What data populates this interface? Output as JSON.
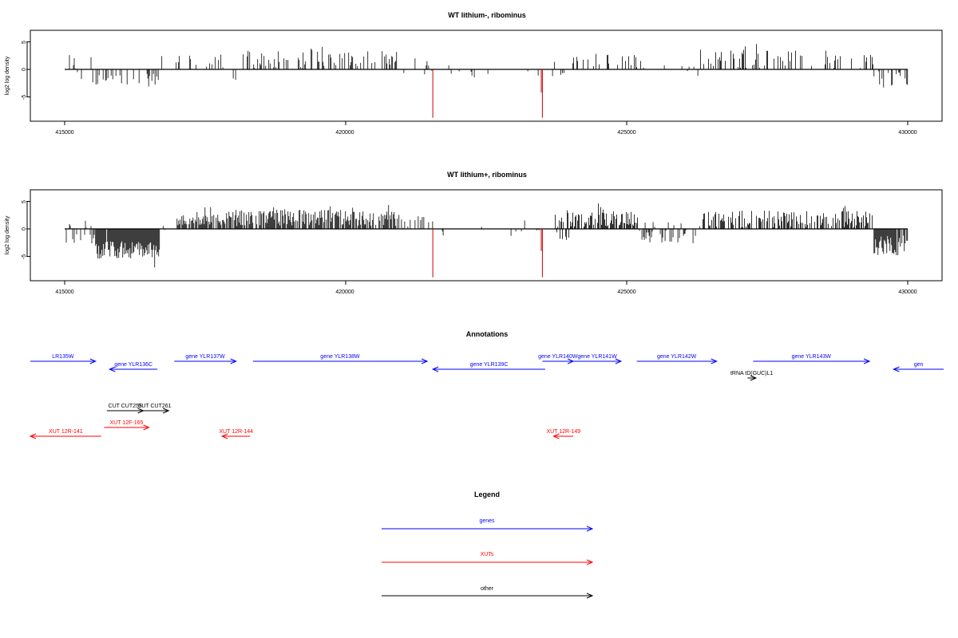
{
  "panels": [
    {
      "title": "WT lithium-, ribominus",
      "ylabel": "log2 log density",
      "yticks": [
        "5",
        "0",
        "-5"
      ],
      "xticks": [
        "415000",
        "420000",
        "425000",
        "430000"
      ]
    },
    {
      "title": "WT lithium+, ribominus",
      "ylabel": "log2 log density",
      "yticks": [
        "5",
        "0",
        "-5"
      ],
      "xticks": [
        "415000",
        "420000",
        "425000",
        "430000"
      ]
    }
  ],
  "annotations": {
    "title": "Annotations",
    "features": [
      {
        "label": "LR135W",
        "type": "gene",
        "color": "#0000ff",
        "start": 414150,
        "end": 415550,
        "strand": "+",
        "track": 0
      },
      {
        "label": "gene YLR136C",
        "type": "gene",
        "color": "#0000ff",
        "start": 415800,
        "end": 416650,
        "strand": "-",
        "track": 1
      },
      {
        "label": "gene YLR137W",
        "type": "gene",
        "color": "#0000ff",
        "start": 416950,
        "end": 418050,
        "strand": "+",
        "track": 0
      },
      {
        "label": "gene YLR138W",
        "type": "gene",
        "color": "#0000ff",
        "start": 418350,
        "end": 421450,
        "strand": "+",
        "track": 0
      },
      {
        "label": "gene YLR139C",
        "type": "gene",
        "color": "#0000ff",
        "start": 421550,
        "end": 423550,
        "strand": "-",
        "track": 1
      },
      {
        "label": "gene YLR140W",
        "type": "gene",
        "color": "#0000ff",
        "start": 423500,
        "end": 424050,
        "strand": "+",
        "track": 0
      },
      {
        "label": "gene YLR141W",
        "type": "gene",
        "color": "#0000ff",
        "start": 424050,
        "end": 424900,
        "strand": "+",
        "track": 0
      },
      {
        "label": "gene YLR142W",
        "type": "gene",
        "color": "#0000ff",
        "start": 425180,
        "end": 426600,
        "strand": "+",
        "track": 0
      },
      {
        "label": "gene YLR143W",
        "type": "gene",
        "color": "#0000ff",
        "start": 427250,
        "end": 429320,
        "strand": "+",
        "track": 0
      },
      {
        "label": "gen",
        "type": "gene",
        "color": "#0000ff",
        "start": 429750,
        "end": 431200,
        "strand": "-",
        "track": 1
      },
      {
        "label": "tRNA tD(GUC)L1",
        "type": "other",
        "color": "#000000",
        "start": 427150,
        "end": 427300,
        "strand": "+",
        "track": 2
      },
      {
        "label": "CUT CUT255",
        "type": "other",
        "color": "#000000",
        "start": 415750,
        "end": 416400,
        "strand": "+",
        "track": 3
      },
      {
        "label": "SUT CUT261",
        "type": "other",
        "color": "#000000",
        "start": 416350,
        "end": 416850,
        "strand": "+",
        "track": 3
      },
      {
        "label": "XUT 12R-141",
        "type": "XUT",
        "color": "#ff0000",
        "start": 414150,
        "end": 415650,
        "strand": "-",
        "track": 4
      },
      {
        "label": "XUT 12F-165",
        "type": "XUT",
        "color": "#ff0000",
        "start": 415700,
        "end": 416500,
        "strand": "+",
        "track": 5
      },
      {
        "label": "XUT 12R-144",
        "type": "XUT",
        "color": "#ff0000",
        "start": 417800,
        "end": 418300,
        "strand": "-",
        "track": 4
      },
      {
        "label": "XUT 12R-149",
        "type": "XUT",
        "color": "#ff0000",
        "start": 423700,
        "end": 424050,
        "strand": "-",
        "track": 4
      }
    ]
  },
  "legend": {
    "title": "Legend",
    "entries": [
      {
        "label": "genes",
        "color": "#0000ff"
      },
      {
        "label": "XUTs",
        "color": "#ff0000"
      },
      {
        "label": "other",
        "color": "#000000"
      }
    ]
  },
  "chart_data": [
    {
      "type": "bar",
      "title": "WT lithium-, ribominus",
      "ylabel": "log2 log density",
      "xlim": [
        415000,
        430000
      ],
      "ylim": [
        -9,
        7
      ],
      "grid": false,
      "red_spikes": [
        {
          "x": 421550,
          "y": -8.8
        },
        {
          "x": 423500,
          "y": -8.8
        },
        {
          "x": 423480,
          "y": -4.2
        }
      ],
      "regions": [
        {
          "start": 415000,
          "end": 415500,
          "density": 0.28,
          "mean": 0.3,
          "spread": 3.0
        },
        {
          "start": 415500,
          "end": 416700,
          "density": 0.3,
          "mean": -2.0,
          "spread": 1.5
        },
        {
          "start": 416700,
          "end": 417800,
          "density": 0.18,
          "mean": 1.5,
          "spread": 1.2
        },
        {
          "start": 417800,
          "end": 418050,
          "density": 0.2,
          "mean": -0.3,
          "spread": 2.0
        },
        {
          "start": 418050,
          "end": 420950,
          "density": 0.38,
          "mean": 1.8,
          "spread": 1.6
        },
        {
          "start": 420950,
          "end": 421550,
          "density": 0.12,
          "mean": 0.6,
          "spread": 1.5
        },
        {
          "start": 421550,
          "end": 423700,
          "density": 0.04,
          "mean": -0.5,
          "spread": 0.8
        },
        {
          "start": 423700,
          "end": 424000,
          "density": 0.3,
          "mean": -1.0,
          "spread": 2.4
        },
        {
          "start": 424000,
          "end": 425300,
          "density": 0.28,
          "mean": 1.4,
          "spread": 1.4
        },
        {
          "start": 425300,
          "end": 426300,
          "density": 0.12,
          "mean": 0.4,
          "spread": 1.6
        },
        {
          "start": 426300,
          "end": 429400,
          "density": 0.28,
          "mean": 1.8,
          "spread": 1.6
        },
        {
          "start": 429400,
          "end": 430000,
          "density": 0.3,
          "mean": -1.5,
          "spread": 1.8
        }
      ]
    },
    {
      "type": "bar",
      "title": "WT lithium+, ribominus",
      "ylabel": "log2 log density",
      "xlim": [
        415000,
        430000
      ],
      "ylim": [
        -9,
        7
      ],
      "grid": false,
      "red_spikes": [
        {
          "x": 421550,
          "y": -8.8
        },
        {
          "x": 423500,
          "y": -8.8
        },
        {
          "x": 423480,
          "y": -4.0
        }
      ],
      "regions": [
        {
          "start": 415000,
          "end": 415550,
          "density": 0.45,
          "mean": -0.8,
          "spread": 2.6
        },
        {
          "start": 415550,
          "end": 416700,
          "density": 0.95,
          "mean": -3.8,
          "spread": 1.6
        },
        {
          "start": 416700,
          "end": 417000,
          "density": 0.2,
          "mean": 0.2,
          "spread": 1.2
        },
        {
          "start": 417000,
          "end": 418050,
          "density": 0.75,
          "mean": 1.6,
          "spread": 1.0
        },
        {
          "start": 418050,
          "end": 420950,
          "density": 0.8,
          "mean": 2.0,
          "spread": 1.5
        },
        {
          "start": 420950,
          "end": 421550,
          "density": 0.25,
          "mean": 0.8,
          "spread": 1.6
        },
        {
          "start": 421550,
          "end": 423700,
          "density": 0.06,
          "mean": -0.3,
          "spread": 1.2
        },
        {
          "start": 423700,
          "end": 424000,
          "density": 0.8,
          "mean": 0.5,
          "spread": 2.8
        },
        {
          "start": 424000,
          "end": 425200,
          "density": 0.75,
          "mean": 1.8,
          "spread": 1.4
        },
        {
          "start": 425200,
          "end": 426300,
          "density": 0.45,
          "mean": -0.6,
          "spread": 2.0
        },
        {
          "start": 426300,
          "end": 429400,
          "density": 0.55,
          "mean": 1.7,
          "spread": 1.6
        },
        {
          "start": 429400,
          "end": 430000,
          "density": 0.85,
          "mean": -3.0,
          "spread": 1.8
        }
      ]
    }
  ]
}
